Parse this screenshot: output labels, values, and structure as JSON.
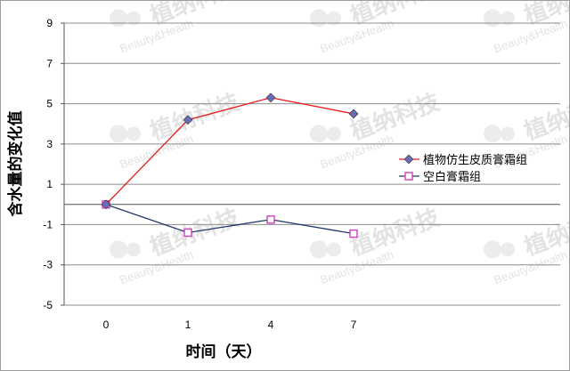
{
  "chart_data": {
    "type": "line",
    "categories": [
      "0",
      "1",
      "4",
      "7"
    ],
    "series": [
      {
        "name": "植物仿生皮质膏霜组",
        "values": [
          0,
          4.2,
          5.3,
          4.5
        ],
        "color": "#e41a1c",
        "marker": "diamond",
        "marker_color": "#6b6bb8"
      },
      {
        "name": "空白膏霜组",
        "values": [
          0,
          -1.4,
          -0.75,
          -1.45
        ],
        "color": "#1f3864",
        "marker": "square",
        "marker_color": "#d040c0"
      }
    ],
    "xlabel": "时间（天）",
    "ylabel": "含水量的变化值",
    "ylim": [
      -5,
      9
    ],
    "yticks": [
      9,
      7,
      5,
      3,
      1,
      -1,
      -3,
      -5
    ],
    "grid": true,
    "legend": "right"
  },
  "watermark": {
    "text": "植纳科技",
    "sub": "Beauty&Health"
  }
}
